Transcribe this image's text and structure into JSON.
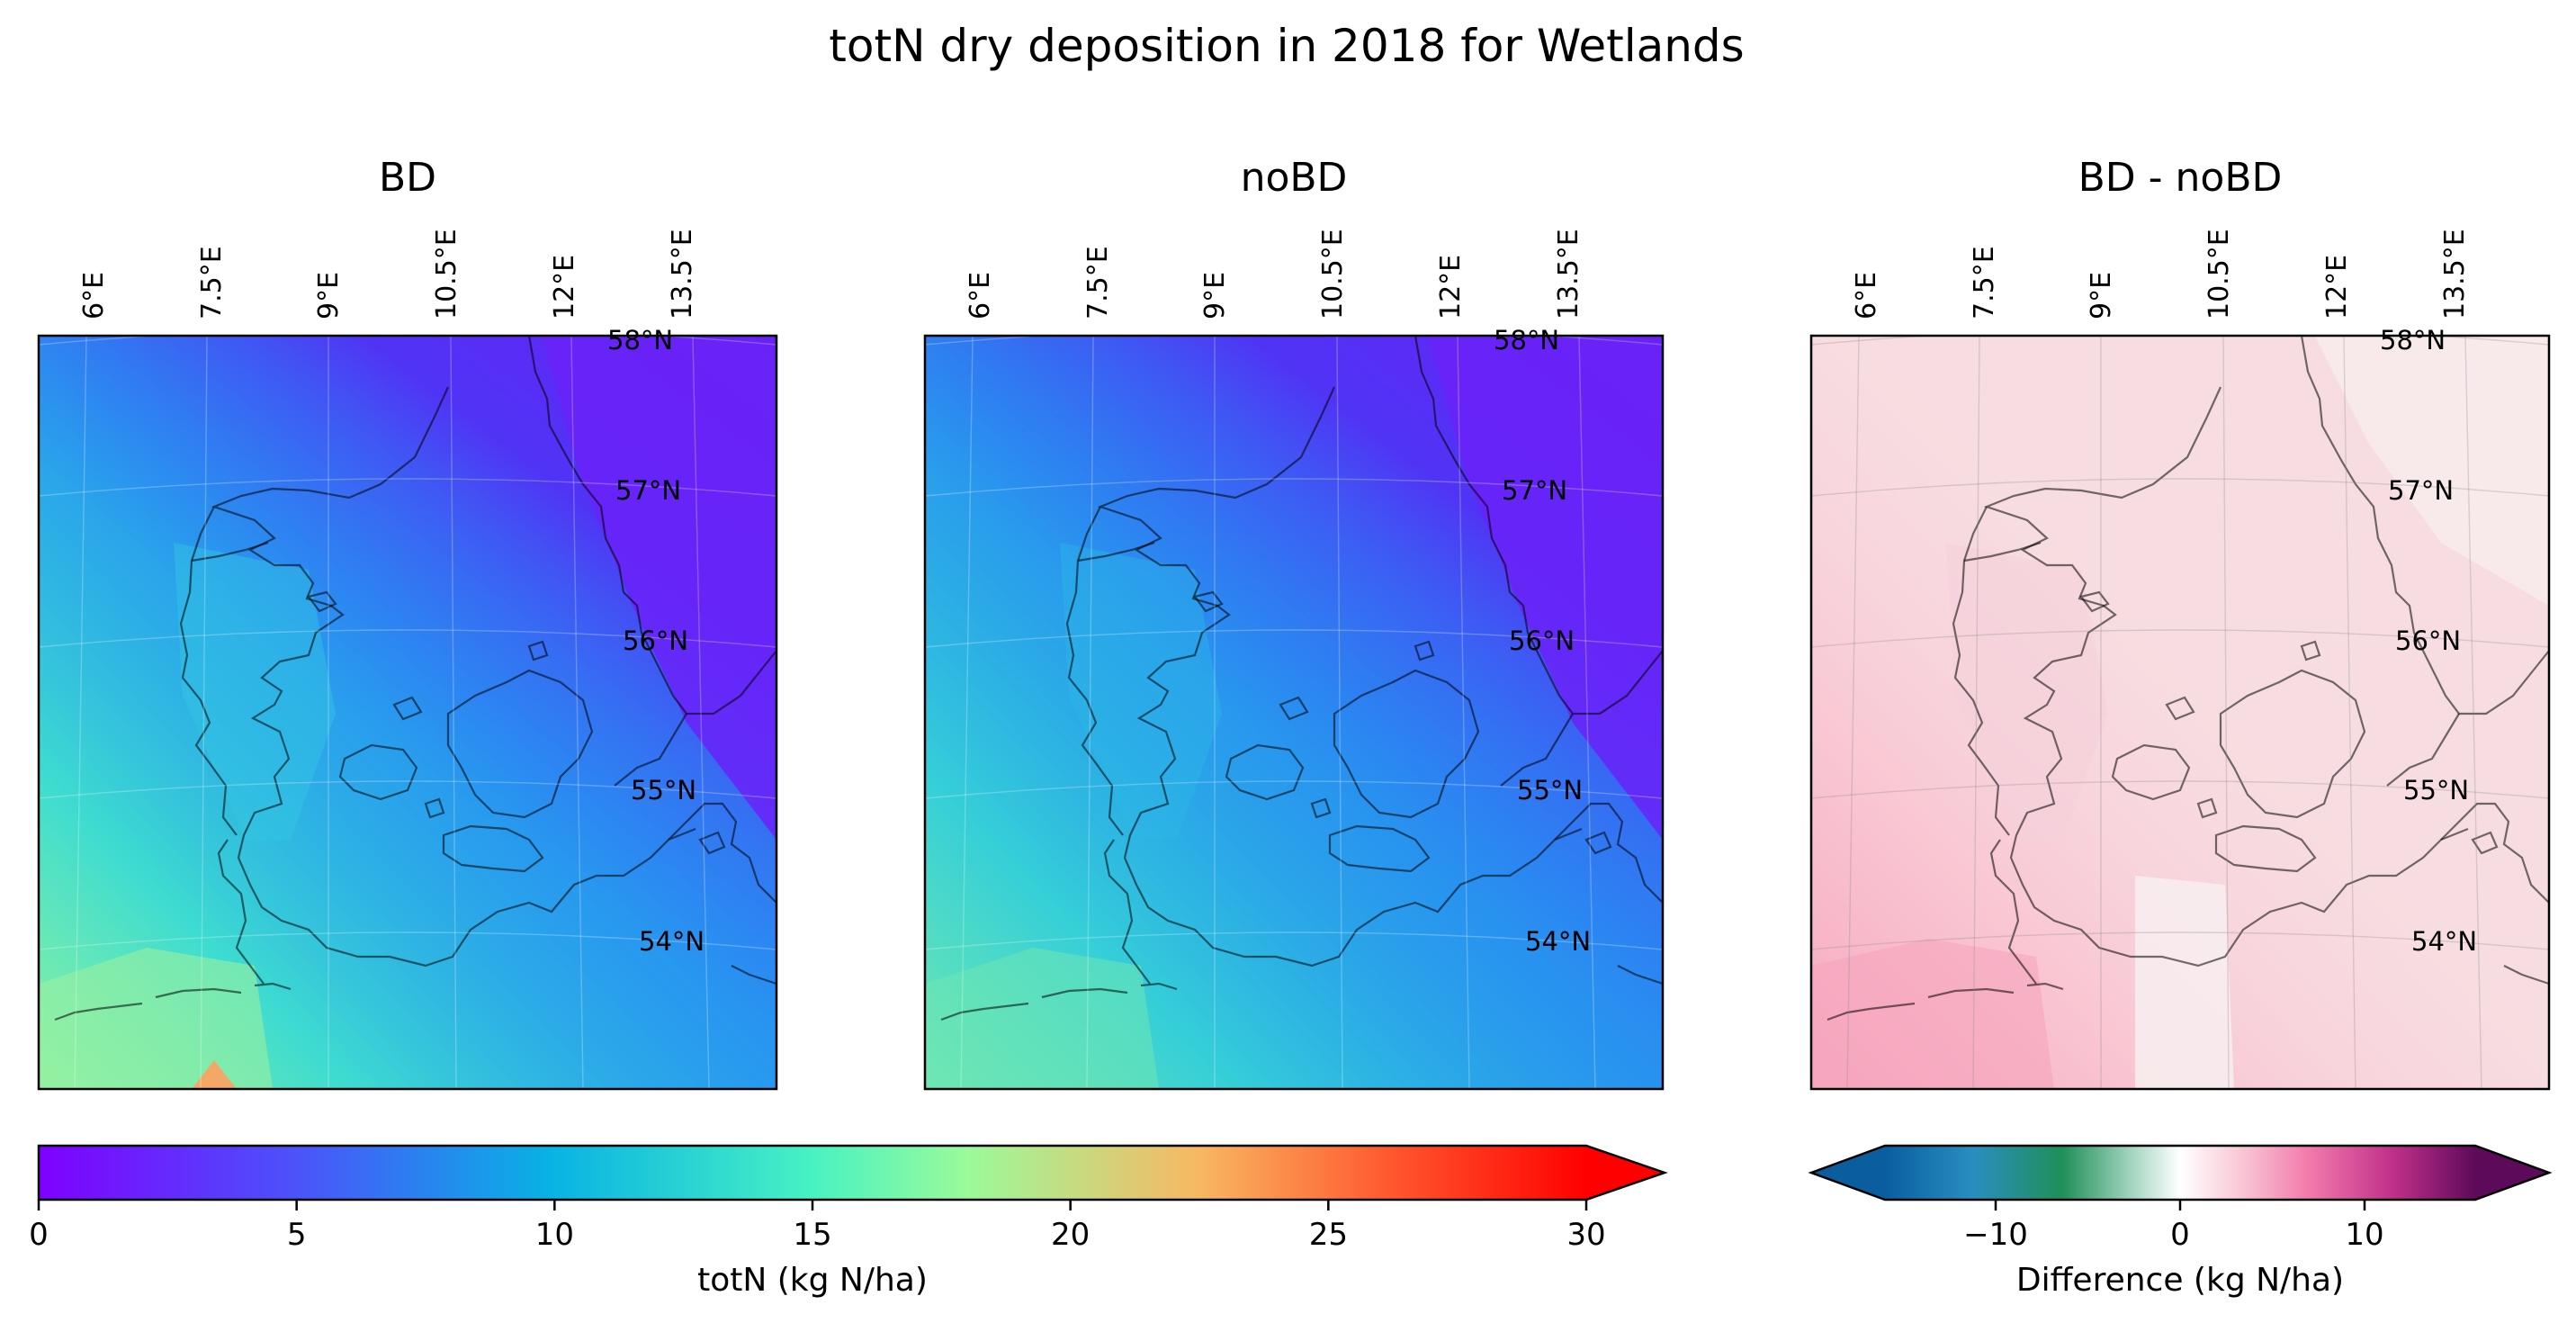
{
  "title": "totN dry deposition in 2018 for Wetlands",
  "panels": [
    {
      "title": "BD"
    },
    {
      "title": "noBD"
    },
    {
      "title": "BD - noBD"
    }
  ],
  "lon_labels": [
    "6°E",
    "7.5°E",
    "9°E",
    "10.5°E",
    "12°E",
    "13.5°E"
  ],
  "lat_labels": [
    "58°N",
    "57°N",
    "56°N",
    "55°N",
    "54°N"
  ],
  "colorbar_totn": {
    "label": "totN (kg N/ha)",
    "ticks": [
      "0",
      "5",
      "10",
      "15",
      "20",
      "25",
      "30"
    ],
    "range": [
      0,
      30
    ],
    "extend": "max",
    "colormap": "rainbow"
  },
  "colorbar_diff": {
    "label": "Difference (kg N/ha)",
    "ticks": [
      "−10",
      "0",
      "10"
    ],
    "range": [
      -16,
      16
    ],
    "extend": "both",
    "colormap": "diverging blue-green-white-pink-purple"
  }
}
